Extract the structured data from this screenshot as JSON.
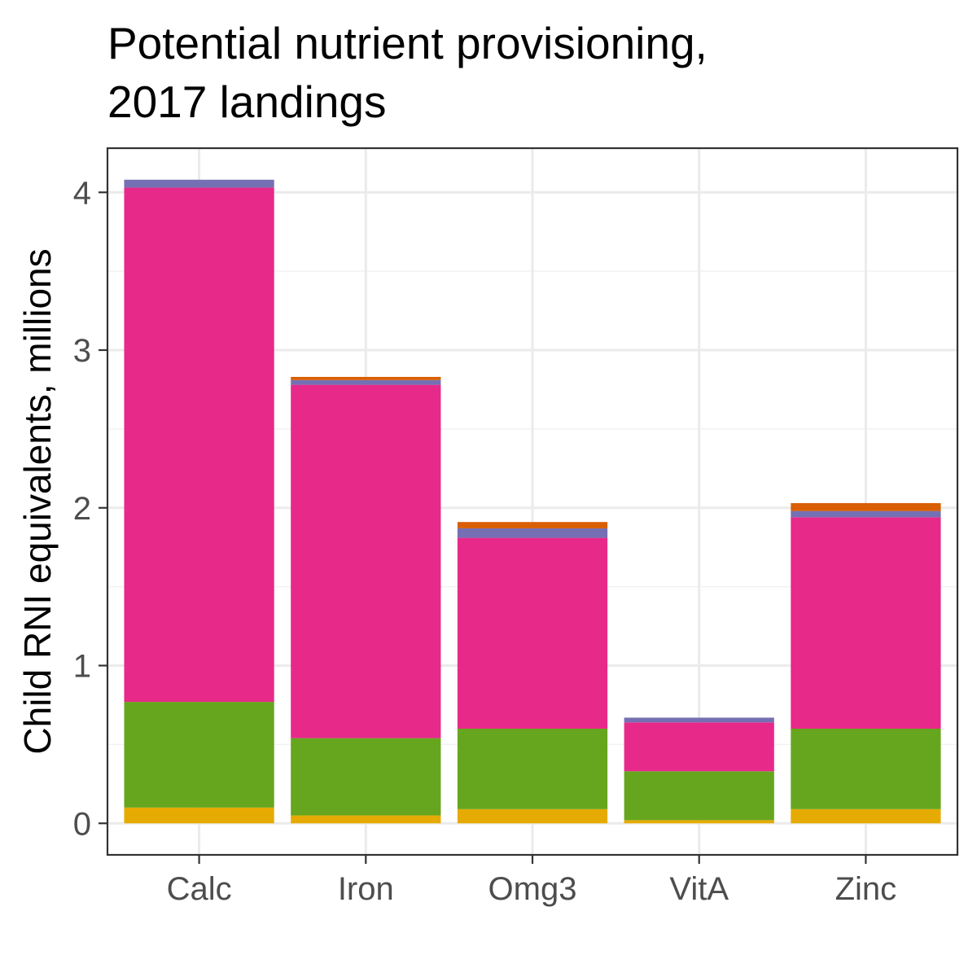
{
  "chart_data": {
    "type": "bar",
    "stacked": true,
    "title_lines": [
      "Potential nutrient provisioning,",
      "2017 landings"
    ],
    "xlabel": "",
    "ylabel": "Child RNI equivalents, millions",
    "categories": [
      "Calc",
      "Iron",
      "Omg3",
      "VitA",
      "Zinc"
    ],
    "y_ticks": [
      "0",
      "1",
      "2",
      "3",
      "4"
    ],
    "ylim": [
      -0.2,
      4.28
    ],
    "grid": true,
    "legend": "none",
    "series": [
      {
        "color": "#E6AB02",
        "values": [
          0.1,
          0.05,
          0.09,
          0.02,
          0.09
        ]
      },
      {
        "color": "#66A61E",
        "values": [
          0.67,
          0.49,
          0.51,
          0.31,
          0.51
        ]
      },
      {
        "color": "#E7298A",
        "values": [
          3.26,
          2.24,
          1.21,
          0.31,
          1.34
        ]
      },
      {
        "color": "#7570B3",
        "values": [
          0.05,
          0.03,
          0.06,
          0.03,
          0.04
        ]
      },
      {
        "color": "#D95F02",
        "values": [
          0.0,
          0.02,
          0.04,
          0.0,
          0.05
        ]
      }
    ]
  }
}
